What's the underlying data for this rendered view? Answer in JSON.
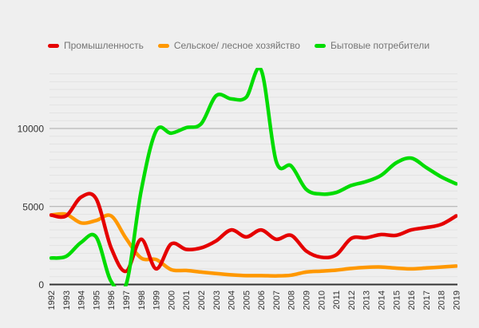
{
  "legend": {
    "items": [
      {
        "label": "Промышленность"
      },
      {
        "label": "Сельское/ лесное хозяйство"
      },
      {
        "label": "Бытовые потребители"
      }
    ]
  },
  "colors": {
    "background": "#efefef",
    "legend_text": "#757575",
    "tick_text": "#333333",
    "grid_minor": "#e2e2e2",
    "grid_major": "#aaaaaa",
    "axis": "#333333"
  },
  "chart_data": {
    "type": "line",
    "title": "",
    "xlabel": "",
    "ylabel": "",
    "x": [
      1992,
      1993,
      1994,
      1995,
      1996,
      1997,
      1998,
      1999,
      2000,
      2001,
      2002,
      2003,
      2004,
      2005,
      2006,
      2007,
      2008,
      2009,
      2010,
      2011,
      2012,
      2013,
      2014,
      2015,
      2016,
      2017,
      2018,
      2019
    ],
    "series": [
      {
        "id": "industry",
        "name": "Промышленность",
        "color": "#e50000",
        "values": [
          4450,
          4400,
          5600,
          5500,
          2350,
          850,
          2900,
          1000,
          2600,
          2250,
          2350,
          2800,
          3500,
          3050,
          3500,
          2900,
          3150,
          2150,
          1750,
          1900,
          2950,
          3000,
          3200,
          3150,
          3500,
          3650,
          3850,
          4400
        ]
      },
      {
        "id": "agriculture",
        "name": "Сельское/ лесное хозяйство",
        "color": "#ff9800",
        "values": [
          4450,
          4500,
          3950,
          4100,
          4400,
          2950,
          1700,
          1600,
          950,
          900,
          800,
          700,
          620,
          570,
          570,
          550,
          600,
          800,
          860,
          920,
          1030,
          1100,
          1120,
          1050,
          1000,
          1060,
          1120,
          1180
        ]
      },
      {
        "id": "households",
        "name": "Бытовые потребители",
        "color": "#00dc00",
        "values": [
          1700,
          1800,
          2700,
          3050,
          200,
          0,
          6000,
          9850,
          9700,
          10050,
          10300,
          12100,
          11900,
          12000,
          13750,
          7900,
          7600,
          6100,
          5800,
          5900,
          6350,
          6600,
          7000,
          7800,
          8100,
          7500,
          6900,
          6450
        ]
      }
    ],
    "ylim": [
      0,
      14000
    ],
    "yticks": [
      0,
      5000,
      10000
    ],
    "grid": {
      "minor_step": 500,
      "minor_max": 13500,
      "major": [
        5000,
        10000
      ],
      "vertical": false
    },
    "legend_position": "top",
    "smoothing": "spline",
    "x_tick_rotation": -90
  }
}
